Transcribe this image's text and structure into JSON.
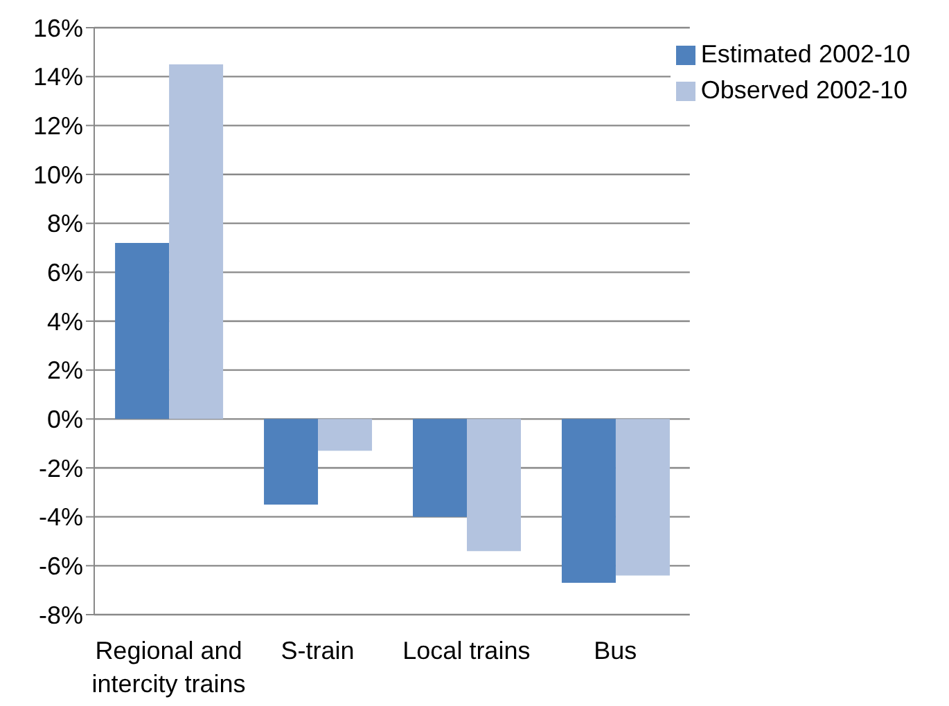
{
  "chart_data": {
    "type": "bar",
    "categories": [
      "Regional and intercity trains",
      "S-train",
      "Local trains",
      "Bus"
    ],
    "series": [
      {
        "name": "Estimated 2002-10",
        "color": "#4f81bd",
        "values": [
          7.2,
          -3.5,
          -4.0,
          -6.7
        ]
      },
      {
        "name": "Observed 2002-10",
        "color": "#b3c3df",
        "values": [
          14.5,
          -1.3,
          -5.4,
          -6.4
        ]
      }
    ],
    "ylim": [
      -8,
      16
    ],
    "yticks": [
      {
        "value": -8,
        "label": "-8%"
      },
      {
        "value": -6,
        "label": "-6%"
      },
      {
        "value": -4,
        "label": "-4%"
      },
      {
        "value": -2,
        "label": "-2%"
      },
      {
        "value": 0,
        "label": "0%"
      },
      {
        "value": 2,
        "label": "2%"
      },
      {
        "value": 4,
        "label": "4%"
      },
      {
        "value": 6,
        "label": "6%"
      },
      {
        "value": 8,
        "label": "8%"
      },
      {
        "value": 10,
        "label": "10%"
      },
      {
        "value": 12,
        "label": "12%"
      },
      {
        "value": 14,
        "label": "14%"
      },
      {
        "value": 16,
        "label": "16%"
      }
    ],
    "grid": "y",
    "legend": "top right"
  }
}
